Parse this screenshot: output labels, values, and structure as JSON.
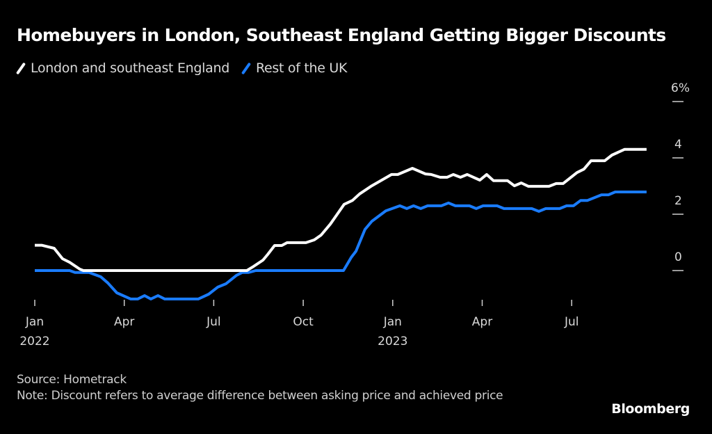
{
  "chart_data": {
    "type": "line",
    "title": "Homebuyers in London, Southeast England Getting Bigger Discounts",
    "xlabel": "",
    "ylabel": "",
    "y_unit": "%",
    "ylim": [
      -1,
      6
    ],
    "yticks": [
      0,
      2,
      4,
      6
    ],
    "ytick_labels": [
      "0",
      "2",
      "4",
      "6%"
    ],
    "y_axis_side": "right",
    "grid": false,
    "legend_position": "top-left",
    "x_range_months": [
      0,
      20.5
    ],
    "x_note": "x values are months since Jan 2022",
    "xticks": [
      {
        "month": 0,
        "label": "Jan",
        "sublabel": "2022"
      },
      {
        "month": 3,
        "label": "Apr",
        "sublabel": ""
      },
      {
        "month": 6,
        "label": "Jul",
        "sublabel": ""
      },
      {
        "month": 9,
        "label": "Oct",
        "sublabel": ""
      },
      {
        "month": 12,
        "label": "Jan",
        "sublabel": "2023"
      },
      {
        "month": 15,
        "label": "Apr",
        "sublabel": ""
      },
      {
        "month": 18,
        "label": "Jul",
        "sublabel": ""
      }
    ],
    "series": [
      {
        "name": "London and southeast England",
        "color": "#ffffff",
        "points": [
          [
            0.0,
            0.9
          ],
          [
            0.23,
            0.9
          ],
          [
            0.65,
            0.79
          ],
          [
            0.93,
            0.42
          ],
          [
            1.16,
            0.3
          ],
          [
            1.51,
            0.05
          ],
          [
            1.63,
            0.0
          ],
          [
            7.11,
            0.0
          ],
          [
            7.34,
            0.15
          ],
          [
            7.65,
            0.37
          ],
          [
            7.81,
            0.57
          ],
          [
            8.04,
            0.89
          ],
          [
            8.28,
            0.89
          ],
          [
            8.46,
            0.99
          ],
          [
            9.09,
            0.99
          ],
          [
            9.37,
            1.09
          ],
          [
            9.6,
            1.26
          ],
          [
            9.91,
            1.65
          ],
          [
            10.14,
            2.0
          ],
          [
            10.37,
            2.35
          ],
          [
            10.65,
            2.49
          ],
          [
            10.89,
            2.72
          ],
          [
            11.3,
            3.01
          ],
          [
            11.96,
            3.41
          ],
          [
            12.17,
            3.41
          ],
          [
            12.66,
            3.63
          ],
          [
            13.1,
            3.43
          ],
          [
            13.29,
            3.41
          ],
          [
            13.59,
            3.31
          ],
          [
            13.82,
            3.31
          ],
          [
            14.03,
            3.41
          ],
          [
            14.27,
            3.31
          ],
          [
            14.5,
            3.41
          ],
          [
            14.92,
            3.21
          ],
          [
            15.15,
            3.41
          ],
          [
            15.38,
            3.19
          ],
          [
            15.85,
            3.19
          ],
          [
            16.08,
            3.01
          ],
          [
            16.31,
            3.11
          ],
          [
            16.55,
            2.99
          ],
          [
            17.24,
            2.99
          ],
          [
            17.48,
            3.09
          ],
          [
            17.71,
            3.09
          ],
          [
            18.06,
            3.38
          ],
          [
            18.18,
            3.48
          ],
          [
            18.41,
            3.6
          ],
          [
            18.65,
            3.9
          ],
          [
            19.11,
            3.9
          ],
          [
            19.35,
            4.1
          ],
          [
            19.77,
            4.3
          ],
          [
            20.51,
            4.3
          ]
        ]
      },
      {
        "name": "Rest of the UK",
        "color": "#1a7cff",
        "points": [
          [
            0.0,
            0.0
          ],
          [
            1.17,
            0.0
          ],
          [
            1.35,
            -0.07
          ],
          [
            1.82,
            -0.07
          ],
          [
            2.21,
            -0.22
          ],
          [
            2.45,
            -0.44
          ],
          [
            2.75,
            -0.79
          ],
          [
            3.22,
            -1.01
          ],
          [
            3.45,
            -1.01
          ],
          [
            3.68,
            -0.89
          ],
          [
            3.89,
            -1.01
          ],
          [
            4.13,
            -0.89
          ],
          [
            4.36,
            -1.01
          ],
          [
            5.48,
            -1.01
          ],
          [
            5.83,
            -0.84
          ],
          [
            6.13,
            -0.59
          ],
          [
            6.41,
            -0.47
          ],
          [
            6.76,
            -0.17
          ],
          [
            6.95,
            -0.07
          ],
          [
            7.16,
            -0.07
          ],
          [
            7.41,
            0.0
          ],
          [
            10.35,
            0.0
          ],
          [
            10.61,
            0.47
          ],
          [
            10.77,
            0.69
          ],
          [
            11.07,
            1.46
          ],
          [
            11.3,
            1.75
          ],
          [
            11.77,
            2.12
          ],
          [
            12.24,
            2.3
          ],
          [
            12.47,
            2.2
          ],
          [
            12.7,
            2.3
          ],
          [
            12.94,
            2.2
          ],
          [
            13.17,
            2.3
          ],
          [
            13.63,
            2.3
          ],
          [
            13.87,
            2.4
          ],
          [
            14.1,
            2.3
          ],
          [
            14.57,
            2.3
          ],
          [
            14.8,
            2.2
          ],
          [
            15.03,
            2.3
          ],
          [
            15.5,
            2.3
          ],
          [
            15.73,
            2.2
          ],
          [
            16.66,
            2.2
          ],
          [
            16.9,
            2.1
          ],
          [
            17.13,
            2.2
          ],
          [
            17.6,
            2.2
          ],
          [
            17.83,
            2.3
          ],
          [
            18.06,
            2.3
          ],
          [
            18.3,
            2.49
          ],
          [
            18.53,
            2.49
          ],
          [
            19.0,
            2.69
          ],
          [
            19.23,
            2.69
          ],
          [
            19.46,
            2.79
          ],
          [
            20.51,
            2.79
          ]
        ]
      }
    ]
  },
  "legend": [
    {
      "label": "London and southeast England",
      "color": "#ffffff"
    },
    {
      "label": "Rest of the UK",
      "color": "#1a7cff"
    }
  ],
  "footer": {
    "source": "Source: Hometrack",
    "note": "Note: Discount refers to average difference between asking price and achieved price"
  },
  "brand": "Bloomberg"
}
